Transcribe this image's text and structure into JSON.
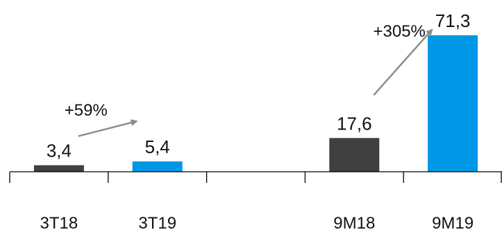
{
  "chart_data": {
    "type": "bar",
    "categories": [
      "3T18",
      "3T19",
      "",
      "9M18",
      "9M19"
    ],
    "values": [
      3.4,
      5.4,
      null,
      17.6,
      71.3
    ],
    "value_labels": [
      "3,4",
      "5,4",
      "",
      "17,6",
      "71,3"
    ],
    "bar_colors": [
      "#404040",
      "#0097e6",
      "",
      "#404040",
      "#0097e6"
    ],
    "ylim": [
      0,
      80
    ],
    "grid": false,
    "legend": "none",
    "annotations": [
      {
        "text": "+59%",
        "from_index": 0,
        "to_index": 1
      },
      {
        "text": "+305%",
        "from_index": 3,
        "to_index": 4
      }
    ],
    "title": "",
    "xlabel": "",
    "ylabel": ""
  },
  "colors": {
    "dark_bar": "#404040",
    "blue_bar": "#0097e6",
    "axis": "#000000",
    "arrow": "#8c8c8c"
  }
}
